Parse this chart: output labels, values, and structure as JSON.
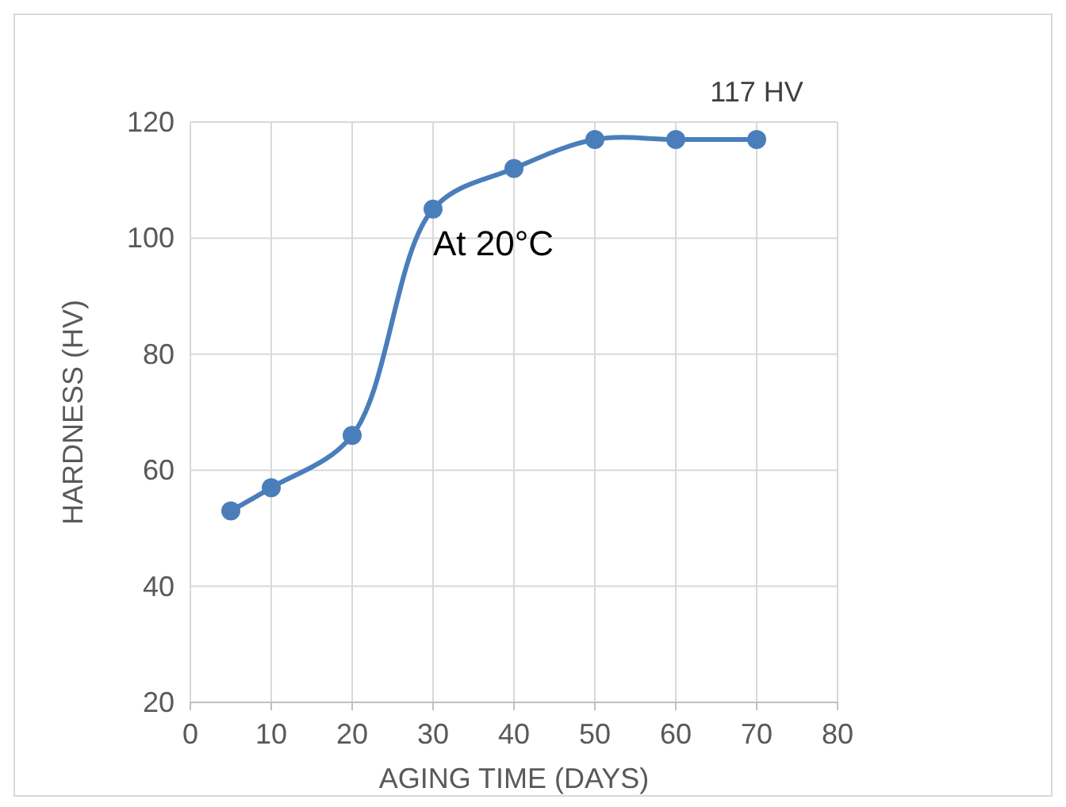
{
  "chart_data": {
    "type": "line",
    "xlabel": "AGING TIME (DAYS)",
    "ylabel": "HARDNESS (HV)",
    "x": [
      5,
      10,
      20,
      30,
      40,
      50,
      60,
      70
    ],
    "series": [
      {
        "color": "#4a7ebb",
        "values": [
          53,
          57,
          66,
          105,
          112,
          117,
          117,
          117
        ]
      }
    ],
    "xlim": [
      0,
      80
    ],
    "xticks": [
      0,
      10,
      20,
      30,
      40,
      50,
      60,
      70,
      80
    ],
    "ylim": [
      20,
      120
    ],
    "yticks": [
      20,
      40,
      60,
      80,
      100,
      120
    ],
    "grid": true,
    "marker": "circle",
    "line_style": "solid",
    "annotations": [
      {
        "text": "117 HV",
        "x": 70,
        "y": 117
      },
      "At 20°C"
    ]
  }
}
